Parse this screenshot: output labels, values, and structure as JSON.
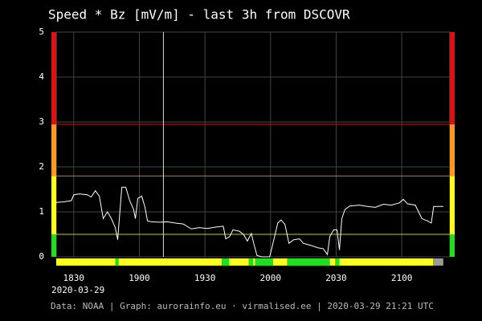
{
  "chart_data": {
    "type": "line",
    "title": "Speed * Bz [mV/m] - last 3h from DSCOVR",
    "date_label": "2020-03-29",
    "footer": "Data: NOAA | Graph: aurorainfo.eu · virmalised.ee | 2020-03-29 21:21 UTC",
    "xlim": [
      1102,
      1282
    ],
    "ylim": [
      0,
      5
    ],
    "xticks": [
      {
        "value": 1110,
        "label": "1830"
      },
      {
        "value": 1140,
        "label": "1900"
      },
      {
        "value": 1170,
        "label": "1930"
      },
      {
        "value": 1200,
        "label": "2000"
      },
      {
        "value": 1230,
        "label": "2030"
      },
      {
        "value": 1260,
        "label": "2100"
      }
    ],
    "yticks": [
      0,
      1,
      2,
      3,
      4,
      5
    ],
    "grid": true,
    "marker_x": 1151,
    "marker_color": "#aaffaa",
    "zones": [
      {
        "from": 0,
        "to": 0.5,
        "color": "#22dd22"
      },
      {
        "from": 0.5,
        "to": 1.8,
        "color": "#ffff22"
      },
      {
        "from": 1.8,
        "to": 2.95,
        "color": "#ff9922"
      },
      {
        "from": 2.95,
        "to": 5,
        "color": "#dd1111"
      }
    ],
    "status": [
      {
        "start": 1102,
        "end": 1129,
        "color": "#ffff22"
      },
      {
        "start": 1129,
        "end": 1130.5,
        "color": "#22dd22"
      },
      {
        "start": 1130.5,
        "end": 1177.7,
        "color": "#ffff22"
      },
      {
        "start": 1177.7,
        "end": 1181,
        "color": "#22dd22"
      },
      {
        "start": 1181,
        "end": 1190.1,
        "color": "#ffff22"
      },
      {
        "start": 1190.1,
        "end": 1192,
        "color": "#22dd22"
      },
      {
        "start": 1192,
        "end": 1193,
        "color": "#ffff22"
      },
      {
        "start": 1193,
        "end": 1201.1,
        "color": "#22dd22"
      },
      {
        "start": 1201.1,
        "end": 1207.7,
        "color": "#ffff22"
      },
      {
        "start": 1207.7,
        "end": 1227.1,
        "color": "#22dd22"
      },
      {
        "start": 1227.1,
        "end": 1229.6,
        "color": "#ffff22"
      },
      {
        "start": 1229.6,
        "end": 1231.5,
        "color": "#22dd22"
      },
      {
        "start": 1231.5,
        "end": 1274.3,
        "color": "#ffff22"
      },
      {
        "start": 1274.3,
        "end": 1279,
        "color": "#999999"
      }
    ],
    "x": [
      1102,
      1105.2,
      1108.9,
      1110,
      1112.6,
      1116.2,
      1118.0,
      1119.9,
      1121.7,
      1123.5,
      1125.4,
      1127.2,
      1129.0,
      1130.1,
      1132.0,
      1133.8,
      1135.6,
      1137.4,
      1138.2,
      1139.3,
      1141.1,
      1142.6,
      1143.7,
      1145.5,
      1149.1,
      1152.8,
      1156.5,
      1160.1,
      1163.8,
      1167.4,
      1171.1,
      1174.8,
      1178.4,
      1179.5,
      1181.3,
      1182.8,
      1185.7,
      1187.6,
      1189.4,
      1191.2,
      1192.3,
      1193.8,
      1196.0,
      1199.6,
      1201.1,
      1203.3,
      1204.8,
      1206.6,
      1208.4,
      1210.6,
      1213.2,
      1215.0,
      1218.7,
      1221.6,
      1224.1,
      1226.0,
      1227.1,
      1228.9,
      1230.4,
      1231.5,
      1232.6,
      1234.0,
      1236.2,
      1240.6,
      1244.3,
      1247.9,
      1251.6,
      1255.2,
      1258.9,
      1260.7,
      1262.6,
      1266.2,
      1269.2,
      1271.7,
      1273.5,
      1274.6,
      1279.0
    ],
    "series": [
      {
        "color": "#ffffff",
        "values": [
          1.21,
          1.22,
          1.25,
          1.38,
          1.4,
          1.38,
          1.33,
          1.47,
          1.35,
          0.85,
          1.0,
          0.85,
          0.65,
          0.38,
          1.55,
          1.55,
          1.25,
          1.05,
          0.85,
          1.3,
          1.35,
          1.1,
          0.8,
          0.78,
          0.77,
          0.78,
          0.75,
          0.73,
          0.62,
          0.65,
          0.63,
          0.66,
          0.68,
          0.4,
          0.45,
          0.6,
          0.57,
          0.5,
          0.35,
          0.52,
          0.3,
          0.03,
          0.0,
          0.0,
          0.3,
          0.75,
          0.82,
          0.72,
          0.3,
          0.38,
          0.4,
          0.3,
          0.25,
          0.2,
          0.18,
          0.05,
          0.45,
          0.6,
          0.6,
          0.15,
          0.85,
          1.05,
          1.13,
          1.15,
          1.12,
          1.1,
          1.17,
          1.15,
          1.2,
          1.28,
          1.18,
          1.15,
          0.85,
          0.8,
          0.75,
          1.12,
          1.12
        ]
      }
    ]
  }
}
